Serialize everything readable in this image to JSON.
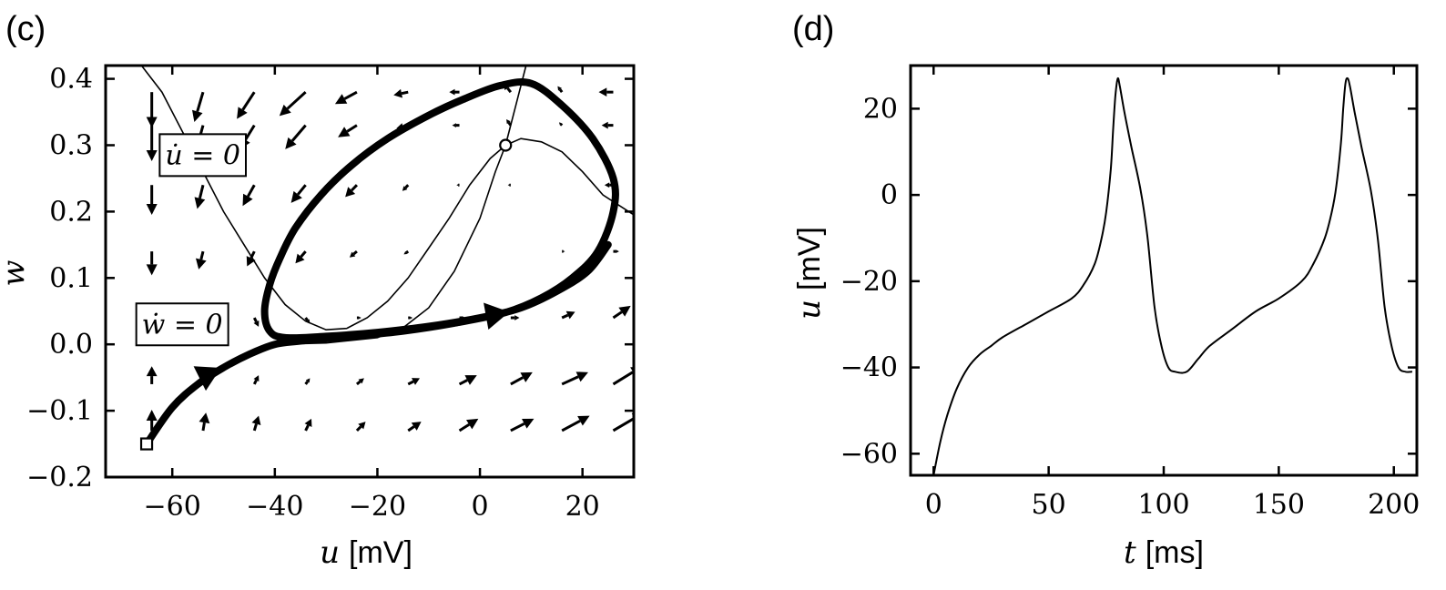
{
  "chart_data": [
    {
      "panel_label": "(c)",
      "type": "phase-plane",
      "xlabel_var": "u",
      "xlabel_unit": "[mV]",
      "ylabel": "w",
      "xlim": [
        -73,
        30
      ],
      "ylim": [
        -0.2,
        0.42
      ],
      "xticks": [
        -60,
        -40,
        -20,
        0,
        20
      ],
      "xtick_labels": [
        "−60",
        "−40",
        "−20",
        "0",
        "20"
      ],
      "yticks": [
        -0.2,
        -0.1,
        0.0,
        0.1,
        0.2,
        0.3,
        0.4
      ],
      "ytick_labels": [
        "−0.2",
        "−0.1",
        "0.0",
        "0.1",
        "0.2",
        "0.3",
        "0.4"
      ],
      "nullcline_labels": [
        {
          "text": "u̇ = 0",
          "x": -64,
          "y": 0.27
        },
        {
          "text": "ẇ = 0",
          "x": -68,
          "y": 0.015
        }
      ],
      "fixed_point": [
        5,
        0.3
      ],
      "start_point": [
        -65,
        -0.15
      ],
      "u_nullcline": [
        [
          -66,
          0.42
        ],
        [
          -62,
          0.38
        ],
        [
          -58,
          0.32
        ],
        [
          -54,
          0.26
        ],
        [
          -50,
          0.2
        ],
        [
          -46,
          0.15
        ],
        [
          -42,
          0.1
        ],
        [
          -38,
          0.06
        ],
        [
          -34,
          0.035
        ],
        [
          -30,
          0.022
        ],
        [
          -26,
          0.024
        ],
        [
          -22,
          0.04
        ],
        [
          -18,
          0.065
        ],
        [
          -14,
          0.1
        ],
        [
          -10,
          0.145
        ],
        [
          -6,
          0.19
        ],
        [
          -2,
          0.24
        ],
        [
          2,
          0.28
        ],
        [
          5,
          0.3
        ],
        [
          8,
          0.31
        ],
        [
          12,
          0.305
        ],
        [
          16,
          0.29
        ],
        [
          20,
          0.26
        ],
        [
          24,
          0.225
        ],
        [
          28,
          0.205
        ],
        [
          30,
          0.195
        ]
      ],
      "w_nullcline": [
        [
          -40,
          0.0
        ],
        [
          -30,
          0.002
        ],
        [
          -20,
          0.01
        ],
        [
          -15,
          0.025
        ],
        [
          -10,
          0.055
        ],
        [
          -5,
          0.11
        ],
        [
          0,
          0.19
        ],
        [
          3,
          0.26
        ],
        [
          5,
          0.3
        ],
        [
          7,
          0.36
        ],
        [
          9,
          0.42
        ]
      ],
      "trajectory": [
        [
          -65,
          -0.15
        ],
        [
          -60,
          -0.095
        ],
        [
          -55,
          -0.06
        ],
        [
          -50,
          -0.035
        ],
        [
          -45,
          -0.015
        ],
        [
          -40,
          0.0
        ],
        [
          -35,
          0.005
        ],
        [
          -25,
          0.012
        ],
        [
          -15,
          0.02
        ],
        [
          -5,
          0.032
        ],
        [
          5,
          0.048
        ],
        [
          12,
          0.07
        ],
        [
          18,
          0.1
        ],
        [
          23,
          0.14
        ],
        [
          26,
          0.2
        ],
        [
          26,
          0.25
        ],
        [
          22,
          0.31
        ],
        [
          16,
          0.36
        ],
        [
          10,
          0.393
        ],
        [
          4,
          0.39
        ],
        [
          -3,
          0.37
        ],
        [
          -10,
          0.345
        ],
        [
          -18,
          0.31
        ],
        [
          -25,
          0.27
        ],
        [
          -31,
          0.225
        ],
        [
          -36,
          0.175
        ],
        [
          -39,
          0.13
        ],
        [
          -41,
          0.09
        ],
        [
          -42,
          0.05
        ],
        [
          -41,
          0.02
        ],
        [
          -38,
          0.01
        ],
        [
          -30,
          0.012
        ],
        [
          -20,
          0.018
        ],
        [
          -10,
          0.027
        ],
        [
          0,
          0.04
        ],
        [
          8,
          0.055
        ],
        [
          15,
          0.08
        ],
        [
          21,
          0.11
        ],
        [
          25,
          0.15
        ]
      ],
      "trajectory_arrows": [
        {
          "at": [
            -53,
            -0.045
          ],
          "dir": [
            1,
            0.5
          ]
        },
        {
          "at": [
            3,
            0.045
          ],
          "dir": [
            1,
            0.18
          ]
        }
      ],
      "vector_field": [
        [
          -64,
          0.38,
          0,
          -0.06
        ],
        [
          -54,
          0.38,
          -0.6,
          -0.05
        ],
        [
          -44,
          0.38,
          -1.2,
          -0.045
        ],
        [
          -34,
          0.38,
          -1.8,
          -0.04
        ],
        [
          -24,
          0.38,
          -1.5,
          -0.02
        ],
        [
          -14,
          0.38,
          -1.0,
          -0.005
        ],
        [
          -4,
          0.38,
          -0.7,
          0.0
        ],
        [
          6,
          0.38,
          -0.5,
          0.015
        ],
        [
          16,
          0.38,
          -0.3,
          0.01
        ],
        [
          26,
          0.38,
          -1.0,
          0.0
        ],
        [
          -64,
          0.33,
          0,
          -0.06
        ],
        [
          -54,
          0.33,
          -0.5,
          -0.045
        ],
        [
          -44,
          0.33,
          -1.0,
          -0.04
        ],
        [
          -34,
          0.33,
          -1.4,
          -0.04
        ],
        [
          -24,
          0.33,
          -1.3,
          -0.02
        ],
        [
          -14,
          0.33,
          -0.8,
          -0.005
        ],
        [
          -4,
          0.33,
          -0.5,
          0.0
        ],
        [
          6,
          0.33,
          -0.3,
          0.01
        ],
        [
          16,
          0.33,
          -0.2,
          0.005
        ],
        [
          26,
          0.33,
          -0.8,
          0.0
        ],
        [
          -64,
          0.24,
          0,
          -0.05
        ],
        [
          -54,
          0.24,
          -0.4,
          -0.04
        ],
        [
          -44,
          0.24,
          -0.8,
          -0.035
        ],
        [
          -34,
          0.24,
          -1.0,
          -0.03
        ],
        [
          -24,
          0.24,
          -0.8,
          -0.02
        ],
        [
          -14,
          0.24,
          -0.4,
          -0.01
        ],
        [
          -4,
          0.24,
          -0.2,
          0.0
        ],
        [
          6,
          0.24,
          -0.2,
          0.0
        ],
        [
          16,
          0.24,
          -0.1,
          0.0
        ],
        [
          26,
          0.24,
          -0.6,
          0.0
        ],
        [
          -64,
          0.14,
          0,
          -0.04
        ],
        [
          -54,
          0.14,
          -0.3,
          -0.03
        ],
        [
          -44,
          0.14,
          -0.5,
          -0.025
        ],
        [
          -34,
          0.14,
          -0.7,
          -0.02
        ],
        [
          -24,
          0.14,
          -0.5,
          -0.01
        ],
        [
          -14,
          0.14,
          -0.3,
          -0.005
        ],
        [
          -4,
          0.14,
          -0.1,
          0.0
        ],
        [
          6,
          0.14,
          0.1,
          0.0
        ],
        [
          16,
          0.14,
          0.2,
          0.0
        ],
        [
          26,
          0.14,
          0.4,
          0.0
        ],
        [
          -64,
          0.04,
          0,
          -0.03
        ],
        [
          -54,
          0.04,
          0.2,
          -0.02
        ],
        [
          -44,
          0.04,
          0.3,
          -0.015
        ],
        [
          -34,
          0.04,
          0.3,
          -0.01
        ],
        [
          -24,
          0.04,
          0.3,
          0.0
        ],
        [
          -14,
          0.04,
          0.3,
          0.0
        ],
        [
          -4,
          0.04,
          0.4,
          0.0
        ],
        [
          6,
          0.04,
          0.6,
          0.0
        ],
        [
          16,
          0.04,
          0.9,
          0.01
        ],
        [
          26,
          0.04,
          1.2,
          0.02
        ],
        [
          -64,
          -0.06,
          0,
          0.03
        ],
        [
          -54,
          -0.06,
          0.2,
          0.02
        ],
        [
          -44,
          -0.06,
          0.3,
          0.015
        ],
        [
          -34,
          -0.06,
          0.3,
          0.01
        ],
        [
          -24,
          -0.06,
          0.5,
          0.01
        ],
        [
          -14,
          -0.06,
          0.8,
          0.01
        ],
        [
          -4,
          -0.06,
          1.2,
          0.015
        ],
        [
          6,
          -0.06,
          1.5,
          0.02
        ],
        [
          16,
          -0.06,
          1.8,
          0.02
        ],
        [
          26,
          -0.06,
          2.0,
          0.03
        ],
        [
          -64,
          -0.13,
          0,
          0.035
        ],
        [
          -54,
          -0.13,
          0.2,
          0.03
        ],
        [
          -44,
          -0.13,
          0.3,
          0.025
        ],
        [
          -34,
          -0.13,
          0.4,
          0.02
        ],
        [
          -24,
          -0.13,
          0.6,
          0.015
        ],
        [
          -14,
          -0.13,
          0.9,
          0.015
        ],
        [
          -4,
          -0.13,
          1.3,
          0.02
        ],
        [
          6,
          -0.13,
          1.6,
          0.02
        ],
        [
          16,
          -0.13,
          1.9,
          0.025
        ],
        [
          26,
          -0.13,
          2.1,
          0.03
        ]
      ]
    },
    {
      "panel_label": "(d)",
      "type": "line",
      "xlabel_var": "t",
      "xlabel_unit": "[ms]",
      "ylabel_var": "u",
      "ylabel_unit": "[mV]",
      "xlim": [
        -10,
        210
      ],
      "ylim": [
        -65,
        30
      ],
      "xticks": [
        0,
        50,
        100,
        150,
        200
      ],
      "xtick_labels": [
        "0",
        "50",
        "100",
        "150",
        "200"
      ],
      "yticks": [
        20,
        0,
        -20,
        -40,
        -60
      ],
      "ytick_labels": [
        "20",
        "0",
        "−20",
        "−40",
        "−60"
      ],
      "series": [
        {
          "x": [
            0,
            3,
            6,
            10,
            15,
            20,
            25,
            30,
            40,
            50,
            60,
            65,
            70,
            73,
            75,
            77,
            78,
            79,
            80,
            81,
            83,
            86,
            90,
            93,
            96,
            99,
            102,
            105,
            110,
            115,
            120,
            130,
            140,
            150,
            160,
            165,
            170,
            173,
            175,
            177,
            178,
            179,
            180,
            181,
            183,
            186,
            190,
            193,
            196,
            199,
            202,
            205,
            208
          ],
          "y": [
            -65,
            -57,
            -51,
            -45,
            -40,
            -37,
            -35,
            -33,
            -30,
            -27,
            -24,
            -21,
            -16,
            -10,
            -4,
            6,
            15,
            23,
            27,
            25,
            19,
            11,
            1,
            -10,
            -26,
            -35,
            -40,
            -41,
            -41,
            -38,
            -35,
            -31,
            -27,
            -24,
            -20,
            -16,
            -10,
            -4,
            2,
            12,
            20,
            26,
            27,
            25,
            19,
            11,
            1,
            -10,
            -26,
            -35,
            -40,
            -41,
            -41
          ]
        }
      ]
    }
  ]
}
